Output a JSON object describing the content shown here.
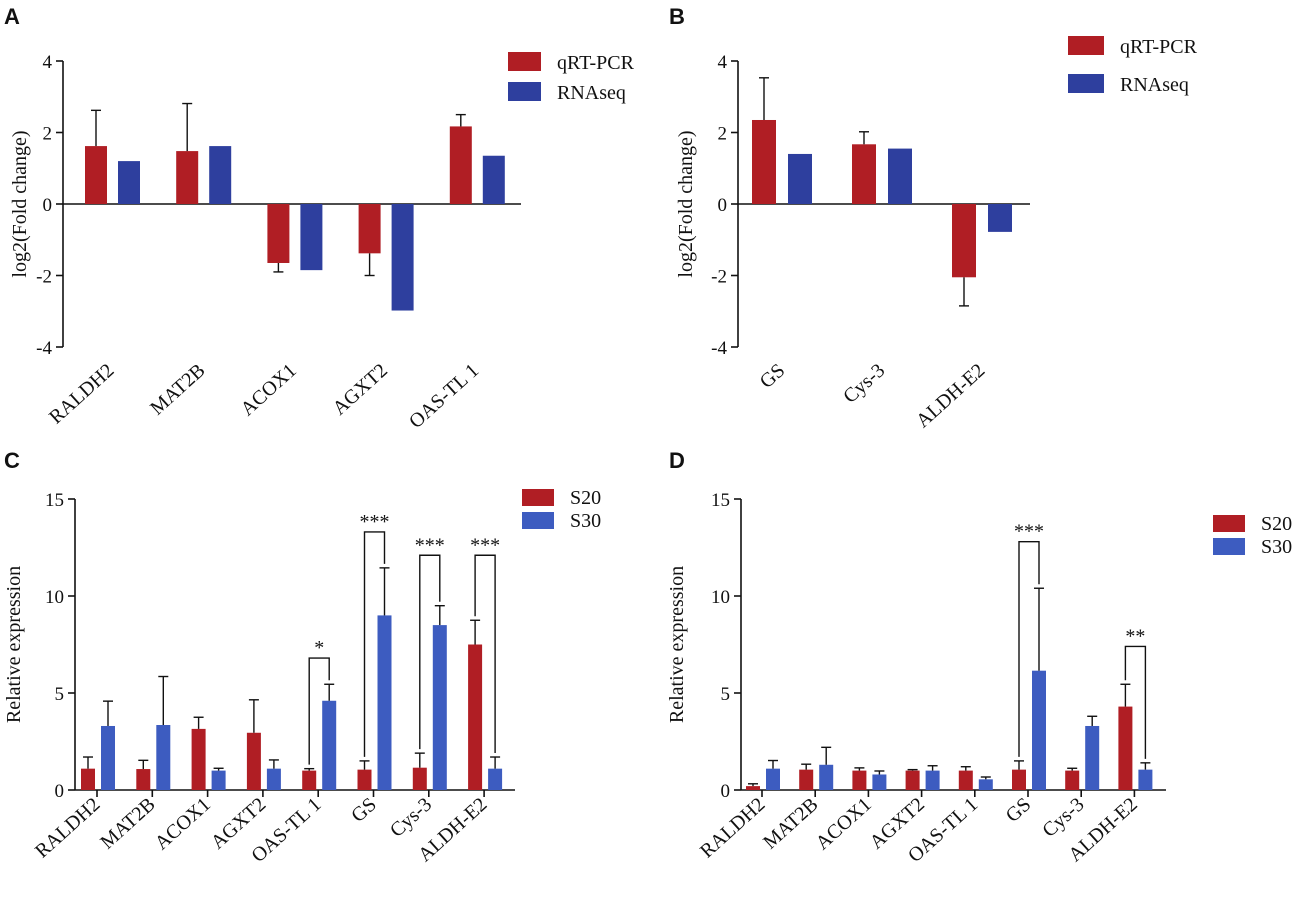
{
  "colors": {
    "red": "#B01E24",
    "blue": "#2E3F9E",
    "blue_light": "#3D5CC0"
  },
  "chart_data": [
    {
      "panel": "A",
      "type": "bar",
      "ylabel": "log2(Fold change)",
      "ylim": [
        -4,
        4
      ],
      "yticks": [
        "-4",
        "-2",
        "0",
        "2",
        "4"
      ],
      "categories": [
        "RALDH2",
        "MAT2B",
        "ACOX1",
        "AGXT2",
        "OAS-TL 1"
      ],
      "series": [
        {
          "name": "qRT-PCR",
          "color": "red",
          "values": [
            1.62,
            1.48,
            -1.65,
            -1.38,
            2.17
          ],
          "errors": [
            1.0,
            1.33,
            0.25,
            0.62,
            0.33
          ]
        },
        {
          "name": "RNAseq",
          "color": "blue",
          "values": [
            1.2,
            1.62,
            -1.85,
            -2.98,
            1.35
          ],
          "errors": [
            0,
            0,
            0,
            0,
            0
          ]
        }
      ],
      "significance": [],
      "legend": "top-right"
    },
    {
      "panel": "B",
      "type": "bar",
      "ylabel": "log2(Fold change)",
      "ylim": [
        -4,
        4
      ],
      "yticks": [
        "-4",
        "-2",
        "0",
        "2",
        "4"
      ],
      "categories": [
        "GS",
        "Cys-3",
        "ALDH-E2"
      ],
      "series": [
        {
          "name": "qRT-PCR",
          "color": "red",
          "values": [
            2.35,
            1.67,
            -2.05
          ],
          "errors": [
            1.18,
            0.35,
            0.8
          ]
        },
        {
          "name": "RNAseq",
          "color": "blue",
          "values": [
            1.4,
            1.55,
            -0.78
          ],
          "errors": [
            0,
            0,
            0
          ]
        }
      ],
      "significance": [],
      "legend": "top-right"
    },
    {
      "panel": "C",
      "type": "bar",
      "ylabel": "Relative expression",
      "ylim": [
        0,
        15
      ],
      "yticks": [
        "0",
        "5",
        "10",
        "15"
      ],
      "categories": [
        "RALDH2",
        "MAT2B",
        "ACOX1",
        "AGXT2",
        "OAS-TL 1",
        "GS",
        "Cys-3",
        "ALDH-E2"
      ],
      "series": [
        {
          "name": "S20",
          "color": "red",
          "values": [
            1.1,
            1.08,
            3.15,
            2.95,
            1.0,
            1.05,
            1.15,
            7.5
          ],
          "errors": [
            0.6,
            0.45,
            0.6,
            1.7,
            0.1,
            0.45,
            0.75,
            1.25
          ]
        },
        {
          "name": "S30",
          "color": "blue_light",
          "values": [
            3.3,
            3.35,
            1.0,
            1.1,
            4.6,
            9.0,
            8.5,
            1.1
          ],
          "errors": [
            1.28,
            2.5,
            0.12,
            0.45,
            0.85,
            2.45,
            1.0,
            0.6
          ]
        }
      ],
      "significance": [
        {
          "index": 4,
          "label": "*",
          "level": 6.8
        },
        {
          "index": 5,
          "label": "***",
          "level": 13.3
        },
        {
          "index": 6,
          "label": "***",
          "level": 12.1
        },
        {
          "index": 7,
          "label": "***",
          "level": 12.1
        }
      ],
      "legend": "top-right"
    },
    {
      "panel": "D",
      "type": "bar",
      "ylabel": "Relative expression",
      "ylim": [
        0,
        15
      ],
      "yticks": [
        "0",
        "5",
        "10",
        "15"
      ],
      "categories": [
        "RALDH2",
        "MAT2B",
        "ACOX1",
        "AGXT2",
        "OAS-TL 1",
        "GS",
        "Cys-3",
        "ALDH-E2"
      ],
      "series": [
        {
          "name": "S20",
          "color": "red",
          "values": [
            0.2,
            1.05,
            1.0,
            1.0,
            1.0,
            1.05,
            1.0,
            4.3
          ],
          "errors": [
            0.12,
            0.28,
            0.14,
            0.05,
            0.2,
            0.45,
            0.12,
            1.15
          ]
        },
        {
          "name": "S30",
          "color": "blue_light",
          "values": [
            1.1,
            1.3,
            0.8,
            1.0,
            0.55,
            6.15,
            3.3,
            1.05
          ],
          "errors": [
            0.42,
            0.9,
            0.18,
            0.25,
            0.12,
            4.25,
            0.5,
            0.35
          ]
        }
      ],
      "significance": [
        {
          "index": 5,
          "label": "***",
          "level": 12.8
        },
        {
          "index": 7,
          "label": "**",
          "level": 7.4
        }
      ],
      "legend": "right"
    }
  ]
}
